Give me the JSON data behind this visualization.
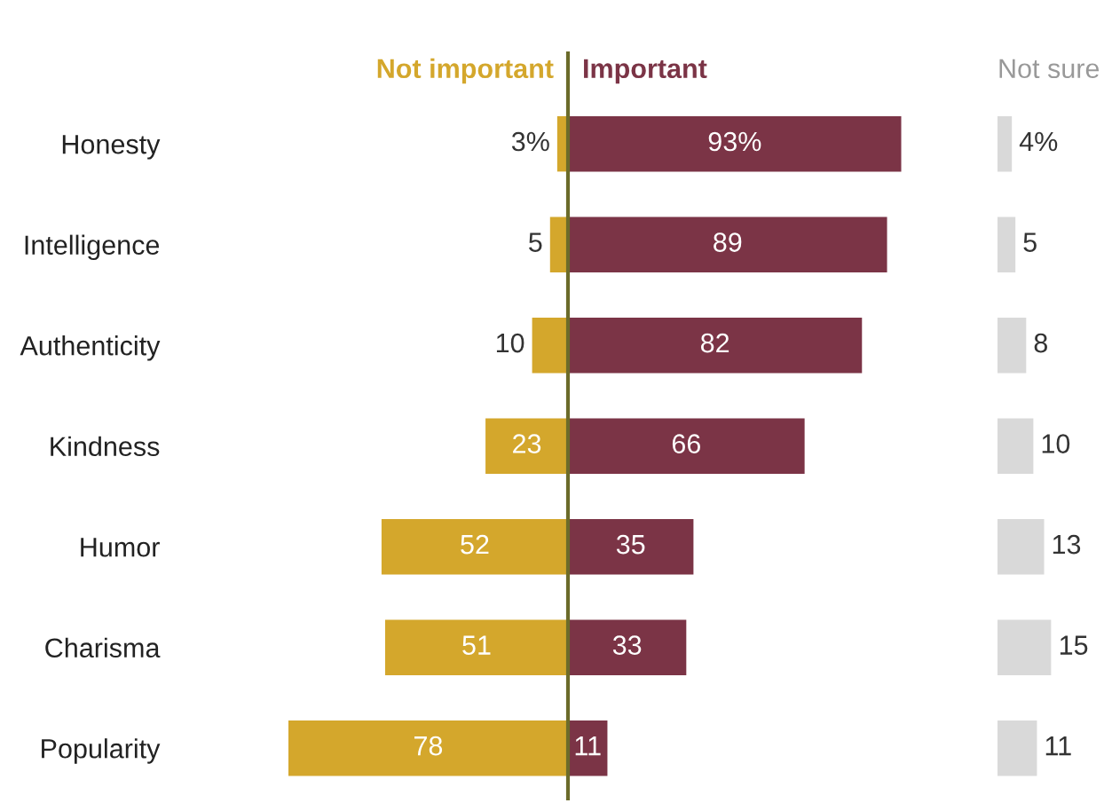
{
  "chart_data": [
    {
      "type": "bar",
      "orientation": "horizontal",
      "categories": [
        "Honesty",
        "Intelligence",
        "Authenticity",
        "Kindness",
        "Humor",
        "Charisma",
        "Popularity"
      ],
      "series": [
        {
          "name": "Not important",
          "color": "#d4a72c",
          "values": [
            3,
            5,
            10,
            23,
            52,
            51,
            78
          ],
          "value_labels": [
            "3%",
            "5",
            "10",
            "23",
            "52",
            "51",
            "78"
          ]
        }
      ],
      "xlim": [
        78,
        0
      ],
      "tick_labels": "y",
      "legend": false
    },
    {
      "type": "bar",
      "orientation": "horizontal",
      "categories": [
        null,
        null,
        null,
        null,
        null,
        null,
        null
      ],
      "series": [
        {
          "name": "Important",
          "color": "#7b3446",
          "values": [
            93,
            89,
            82,
            66,
            35,
            33,
            11
          ],
          "value_labels": [
            "93%",
            "89",
            "82",
            "66",
            "35",
            "33",
            "11"
          ]
        }
      ],
      "tick_labels": false,
      "legend": false,
      "ref_lines": [
        {
          "axis": "x",
          "value": 0,
          "color": "#6b6b2a"
        }
      ]
    },
    {
      "type": "bar",
      "orientation": "horizontal",
      "categories": [
        null,
        null,
        null,
        null,
        null,
        null,
        null
      ],
      "series": [
        {
          "name": "Not sure",
          "color": "#d9d9d9",
          "values": [
            4,
            5,
            8,
            10,
            13,
            15,
            11
          ],
          "value_labels": [
            "4%",
            "5",
            "8",
            "10",
            "13",
            "15",
            "11"
          ]
        }
      ],
      "tick_labels": false,
      "legend": false
    }
  ]
}
